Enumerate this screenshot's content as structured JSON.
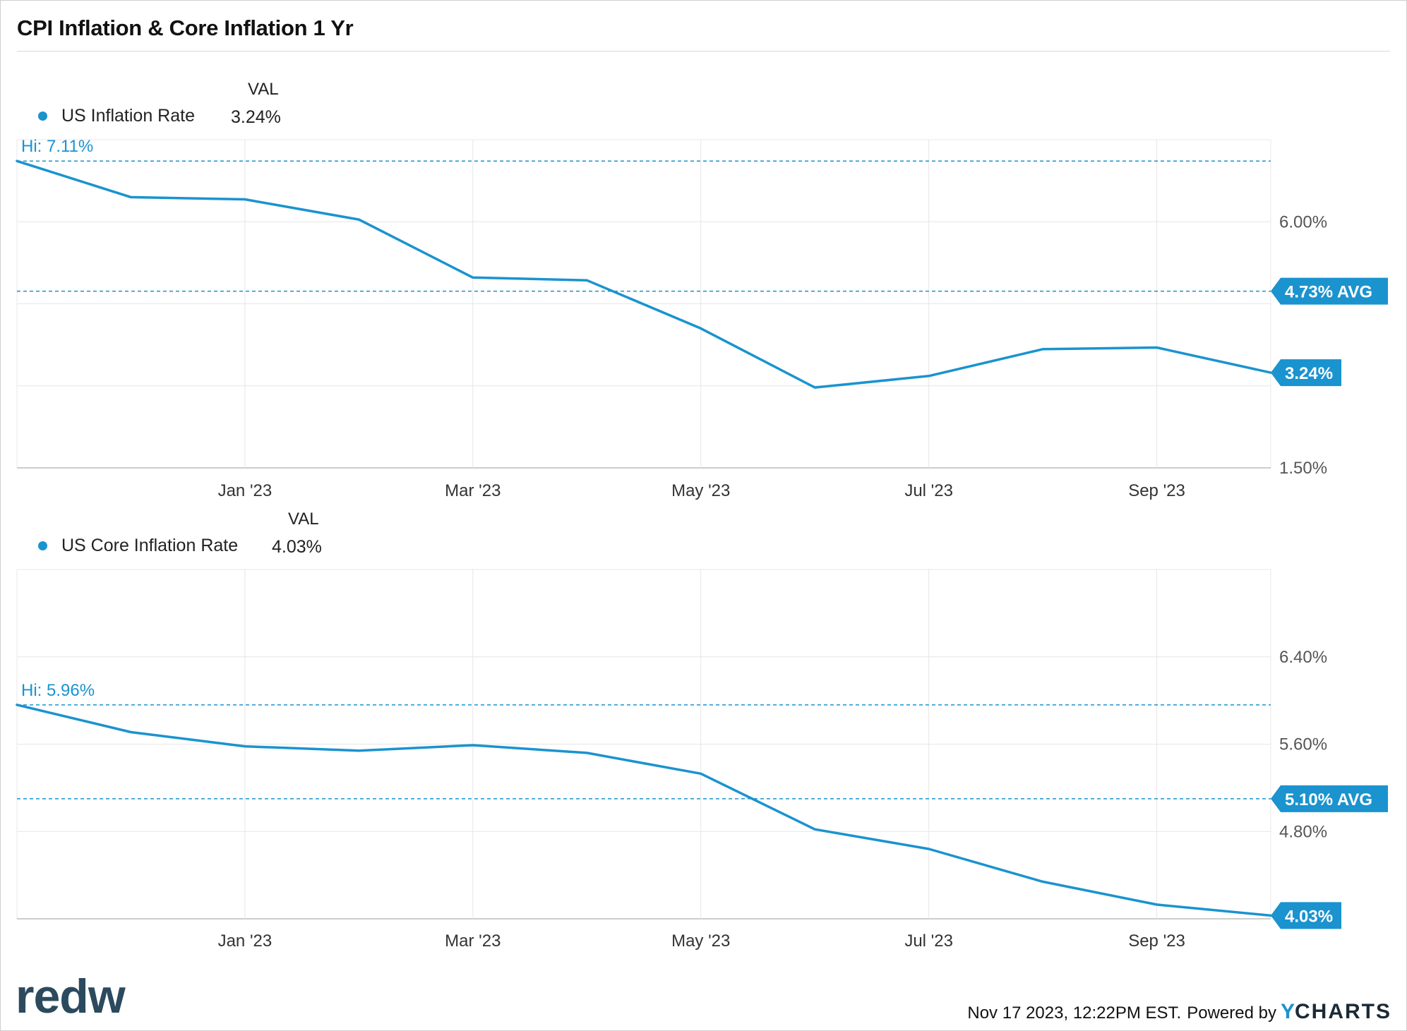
{
  "title": "CPI Inflation & Core Inflation 1 Yr",
  "footer": {
    "timestamp": "Nov 17 2023, 12:22PM EST.",
    "powered_by": "Powered by",
    "brand_first": "Y",
    "brand_rest": "CHARTS",
    "logo": "redw"
  },
  "colors": {
    "series": "#1a93cf",
    "grid": "#e6e6e6",
    "axis": "#cccccc",
    "label": "#555555"
  },
  "chart_data": [
    {
      "type": "line",
      "legend_header": "VAL",
      "series_label": "US Inflation Rate",
      "series_value": "3.24%",
      "x": [
        "2022-11",
        "2022-12",
        "2023-01",
        "2023-02",
        "2023-03",
        "2023-04",
        "2023-05",
        "2023-06",
        "2023-07",
        "2023-08",
        "2023-09",
        "2023-10"
      ],
      "values": [
        7.11,
        6.45,
        6.41,
        6.04,
        4.98,
        4.93,
        4.05,
        2.97,
        3.18,
        3.67,
        3.7,
        3.24
      ],
      "x_ticks": [
        "Jan '23",
        "Mar '23",
        "May '23",
        "Jul '23",
        "Sep '23"
      ],
      "y_ticks": [
        "6.00%",
        "1.50%"
      ],
      "y_tick_values": [
        6.0,
        1.5
      ],
      "grid_values": [
        6.0,
        4.5,
        3.0,
        1.5
      ],
      "ylim": [
        1.5,
        7.5
      ],
      "hi_label": "Hi: 7.11%",
      "hi_value": 7.11,
      "avg_label": "4.73% AVG",
      "avg_value": 4.73,
      "last_label": "3.24%",
      "last_value": 3.24
    },
    {
      "type": "line",
      "legend_header": "VAL",
      "series_label": "US Core Inflation Rate",
      "series_value": "4.03%",
      "x": [
        "2022-11",
        "2022-12",
        "2023-01",
        "2023-02",
        "2023-03",
        "2023-04",
        "2023-05",
        "2023-06",
        "2023-07",
        "2023-08",
        "2023-09",
        "2023-10"
      ],
      "values": [
        5.96,
        5.71,
        5.58,
        5.54,
        5.59,
        5.52,
        5.33,
        4.82,
        4.64,
        4.34,
        4.13,
        4.03
      ],
      "x_ticks": [
        "Jan '23",
        "Mar '23",
        "May '23",
        "Jul '23",
        "Sep '23"
      ],
      "y_ticks": [
        "6.40%",
        "5.60%",
        "4.80%"
      ],
      "y_tick_values": [
        6.4,
        5.6,
        4.8
      ],
      "grid_values": [
        6.4,
        5.6,
        4.8
      ],
      "ylim": [
        4.0,
        7.2
      ],
      "hi_label": "Hi: 5.96%",
      "hi_value": 5.96,
      "avg_label": "5.10% AVG",
      "avg_value": 5.1,
      "last_label": "4.03%",
      "last_value": 4.03
    }
  ]
}
